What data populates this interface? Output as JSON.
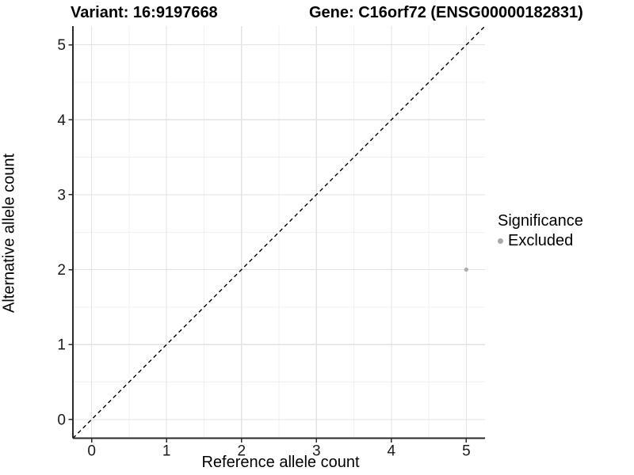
{
  "titles": {
    "left": "Variant: 16:9197668",
    "right": "Gene: C16orf72 (ENSG00000182831)"
  },
  "legend": {
    "title": "Significance",
    "items": [
      {
        "label": "Excluded",
        "color": "#a9a9a9"
      }
    ]
  },
  "chart_data": {
    "type": "scatter",
    "title": "Variant: 16:9197668 — Gene: C16orf72 (ENSG00000182831)",
    "xlabel": "Reference allele count",
    "ylabel": "Alternative allele count",
    "xlim": [
      -0.25,
      5.25
    ],
    "ylim": [
      -0.25,
      5.25
    ],
    "x_ticks": [
      0,
      1,
      2,
      3,
      4,
      5
    ],
    "y_ticks": [
      0,
      1,
      2,
      3,
      4,
      5
    ],
    "minor_step": 0.5,
    "grid": true,
    "legend_position": "right",
    "series": [
      {
        "name": "Excluded",
        "color": "#a9a9a9",
        "point_radius": 2.6,
        "points": [
          {
            "x": 5,
            "y": 2
          }
        ]
      }
    ],
    "reference_line": {
      "type": "identity",
      "style": "dashed",
      "color": "#000000"
    },
    "style_colors": {
      "grid_major": "#e3e3e3",
      "grid_minor": "#f0f0f0",
      "axis_line": "#2a2a2a",
      "tick_label": "#1a1a1a"
    }
  }
}
